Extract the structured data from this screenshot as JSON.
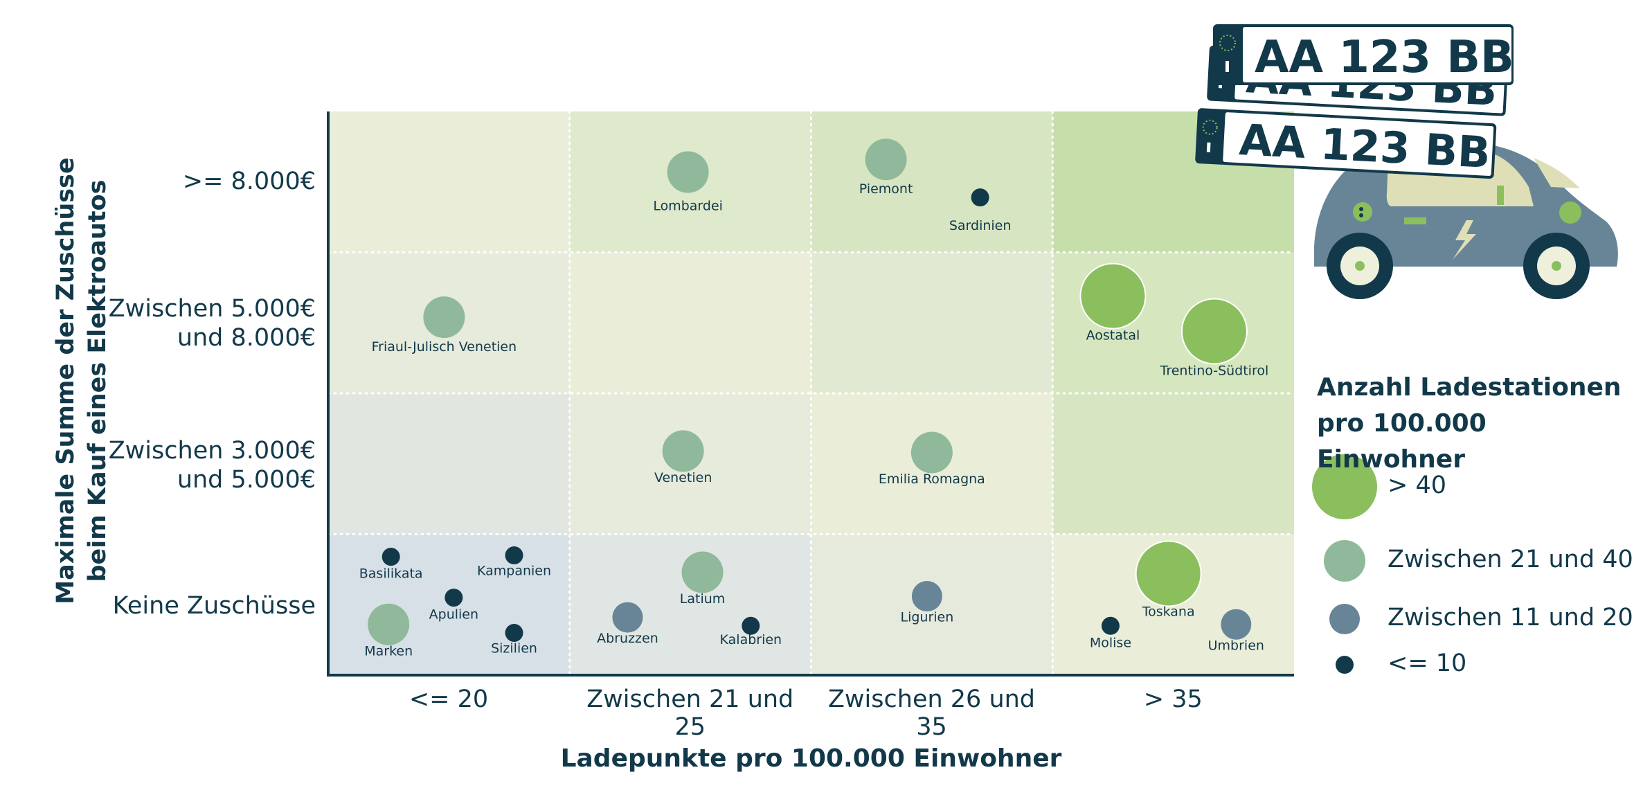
{
  "chart_data": {
    "type": "scatter",
    "title": "",
    "xlabel": "Ladepunkte pro 100.000 Einwohner",
    "ylabel_lines": [
      "Maximale Summe der Zuschüsse",
      "beim Kauf eines Elektroautos"
    ],
    "x_categories": [
      "<= 20",
      "Zwischen 21 und 25",
      "Zwischen 26 und 35",
      "> 35"
    ],
    "y_categories": [
      "Keine Zuschüsse",
      "Zwischen 3.000€\nund 5.000€",
      "Zwischen 5.000€\nund 8.000€",
      ">= 8.000€"
    ],
    "grid": true,
    "cell_colors": [
      [
        "#d8e0e7",
        "#e0e6e3",
        "#e6eadd",
        "#eaeed9"
      ],
      [
        "#e1e6e0",
        "#e6ebdc",
        "#eaeed9",
        "#d8e5c3"
      ],
      [
        "#e6ebdc",
        "#eaeed9",
        "#e2e9d2",
        "#d6e6bf"
      ],
      [
        "#eaeed9",
        "#dfe9cc",
        "#d8e5c3",
        "#c6deaa"
      ]
    ],
    "size_legend": {
      "title_lines": [
        "Anzahl Ladestationen",
        "pro 100.000 Einwohner"
      ],
      "classes": [
        {
          "label": "> 40",
          "color": "#8bbf5e"
        },
        {
          "label": "Zwischen 21 und 40",
          "color": "#8fb99a"
        },
        {
          "label": "Zwischen 11 und 20",
          "color": "#688598"
        },
        {
          "label": "<= 10",
          "color": "#12394a"
        }
      ]
    },
    "points": [
      {
        "name": "Lombardei",
        "x": "Zwischen 21 und 25",
        "y": ">= 8.000€",
        "class": "Zwischen 21 und 40"
      },
      {
        "name": "Piemont",
        "x": "Zwischen 26 und 35",
        "y": ">= 8.000€",
        "class": "Zwischen 21 und 40"
      },
      {
        "name": "Sardinien",
        "x": "Zwischen 26 und 35",
        "y": ">= 8.000€",
        "class": "<= 10"
      },
      {
        "name": "Friaul-Julisch Venetien",
        "x": "<= 20",
        "y": "Zwischen 5.000€ und 8.000€",
        "class": "Zwischen 21 und 40"
      },
      {
        "name": "Aostatal",
        "x": "> 35",
        "y": "Zwischen 5.000€ und 8.000€",
        "class": "> 40"
      },
      {
        "name": "Trentino-Südtirol",
        "x": "> 35",
        "y": "Zwischen 5.000€ und 8.000€",
        "class": "> 40"
      },
      {
        "name": "Venetien",
        "x": "Zwischen 21 und 25",
        "y": "Zwischen 3.000€ und 5.000€",
        "class": "Zwischen 21 und 40"
      },
      {
        "name": "Emilia Romagna",
        "x": "Zwischen 26 und 35",
        "y": "Zwischen 3.000€ und 5.000€",
        "class": "Zwischen 21 und 40"
      },
      {
        "name": "Basilikata",
        "x": "<= 20",
        "y": "Keine Zuschüsse",
        "class": "<= 10"
      },
      {
        "name": "Kampanien",
        "x": "<= 20",
        "y": "Keine Zuschüsse",
        "class": "<= 10"
      },
      {
        "name": "Apulien",
        "x": "<= 20",
        "y": "Keine Zuschüsse",
        "class": "<= 10"
      },
      {
        "name": "Marken",
        "x": "<= 20",
        "y": "Keine Zuschüsse",
        "class": "Zwischen 21 und 40"
      },
      {
        "name": "Sizilien",
        "x": "<= 20",
        "y": "Keine Zuschüsse",
        "class": "<= 10"
      },
      {
        "name": "Latium",
        "x": "Zwischen 21 und 25",
        "y": "Keine Zuschüsse",
        "class": "Zwischen 21 und 40"
      },
      {
        "name": "Abruzzen",
        "x": "Zwischen 21 und 25",
        "y": "Keine Zuschüsse",
        "class": "Zwischen 11 und 20"
      },
      {
        "name": "Kalabrien",
        "x": "Zwischen 21 und 25",
        "y": "Keine Zuschüsse",
        "class": "<= 10"
      },
      {
        "name": "Ligurien",
        "x": "Zwischen 26 und 35",
        "y": "Keine Zuschüsse",
        "class": "Zwischen 11 und 20"
      },
      {
        "name": "Toskana",
        "x": "> 35",
        "y": "Keine Zuschüsse",
        "class": "> 40"
      },
      {
        "name": "Molise",
        "x": "> 35",
        "y": "Keine Zuschüsse",
        "class": "<= 10"
      },
      {
        "name": "Umbrien",
        "x": "> 35",
        "y": "Keine Zuschüsse",
        "class": "Zwischen 11 und 20"
      }
    ]
  },
  "illustration": {
    "plate_text": "AA 123 BB",
    "car_body_color": "#688598",
    "car_accent_color": "#8bbf5e",
    "dark_color": "#12394a"
  }
}
